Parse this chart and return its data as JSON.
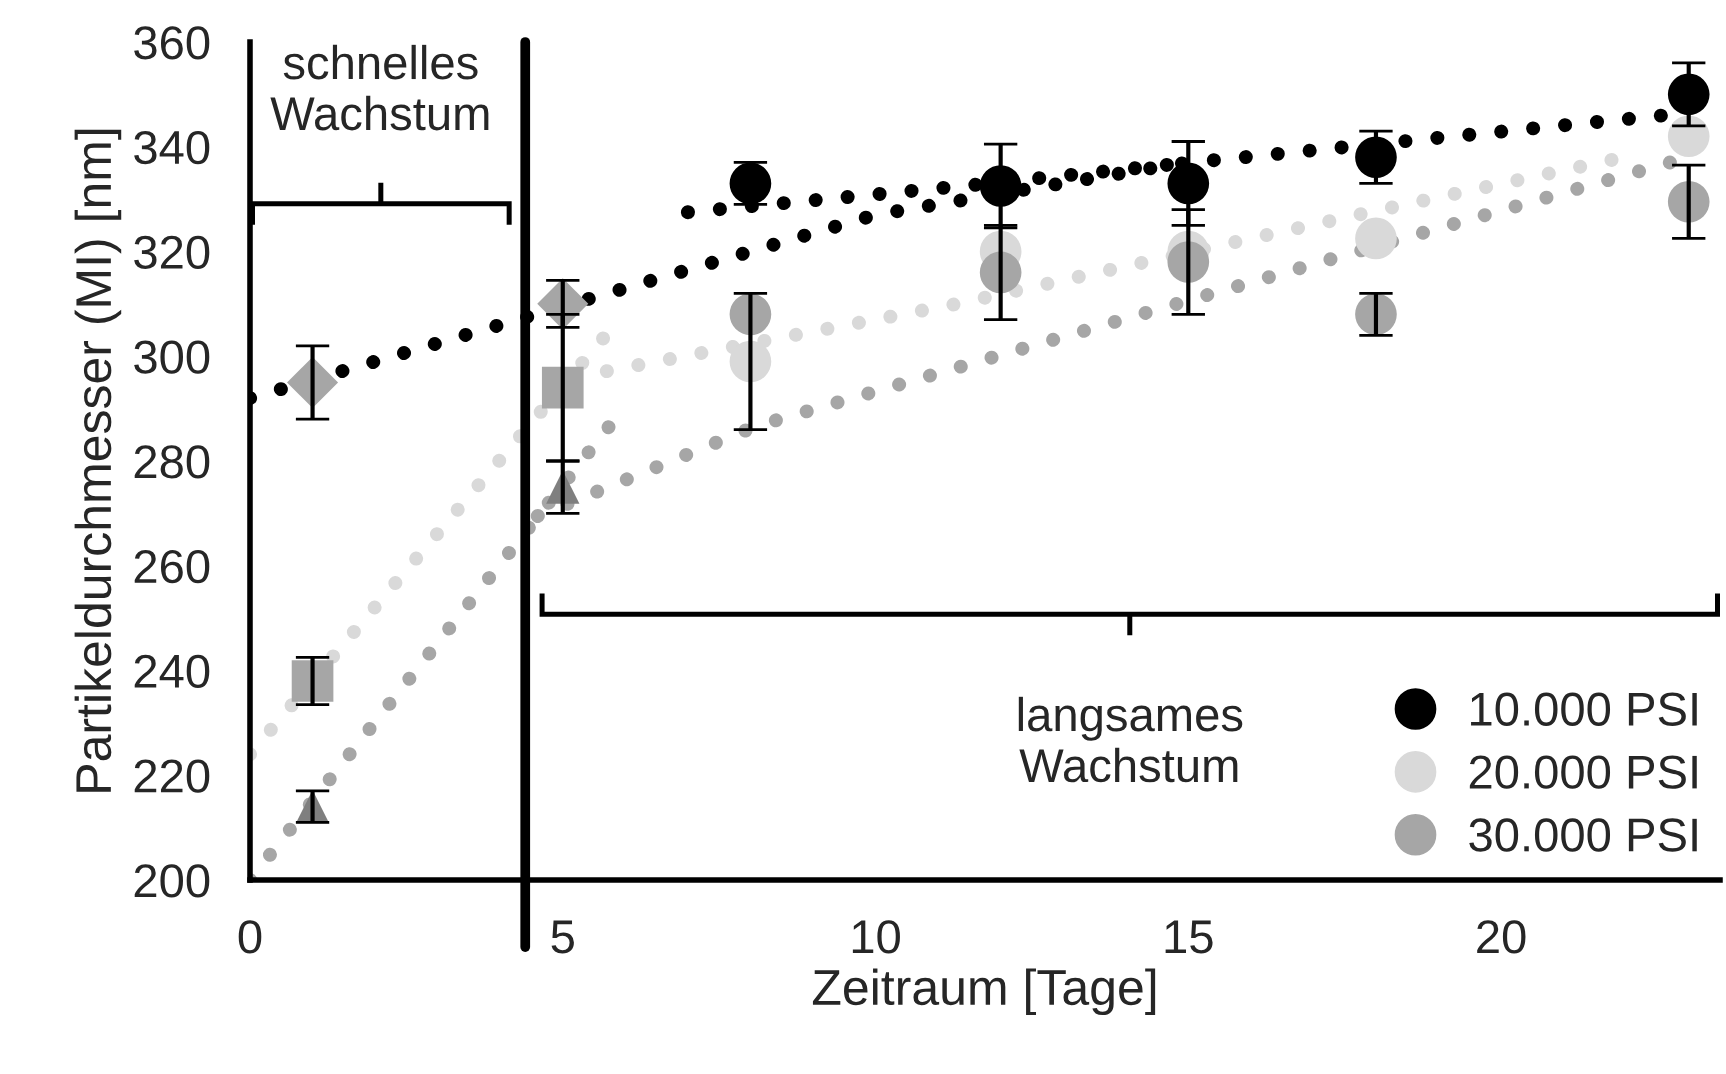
{
  "chart_data": {
    "type": "scatter",
    "xlabel": "Zeitraum [Tage]",
    "ylabel": "Partikeldurchmesser (MI) [nm]",
    "xlim": [
      0,
      23.5
    ],
    "xticks": [
      0,
      5,
      10,
      15,
      20
    ],
    "ylim": [
      200,
      360
    ],
    "yticks": [
      200,
      220,
      240,
      260,
      280,
      300,
      320,
      340,
      360
    ],
    "grid": false,
    "legend": "bottom right",
    "series": [
      {
        "color": "#a6a6a6",
        "marker": "diamond",
        "x": [
          1,
          5
        ],
        "values": [
          295,
          310
        ],
        "errors": [
          7,
          4.5
        ]
      },
      {
        "color": "#a6a6a6",
        "marker": "square",
        "x": [
          1,
          5
        ],
        "values": [
          238,
          294
        ],
        "errors": [
          4.5,
          14
        ]
      },
      {
        "color": "#7f7f7f",
        "marker": "triangle",
        "x": [
          1,
          5
        ],
        "values": [
          214,
          275
        ],
        "errors": [
          3,
          5
        ]
      },
      {
        "type": "line",
        "color": "#000000",
        "line_style": "dotted",
        "x": [
          0,
          4,
          7,
          10,
          14.8,
          22.6
        ],
        "values": [
          292,
          306,
          316.5,
          327,
          336.7,
          346
        ]
      },
      {
        "type": "line",
        "color": "#000000",
        "line_style": "dotted",
        "x": [
          7,
          11.4,
          14.8
        ],
        "values": [
          327.5,
          332.5,
          336.7
        ]
      },
      {
        "type": "line",
        "color": "#d9d9d9",
        "line_style": "dotted",
        "x": [
          0,
          5.9
        ],
        "values": [
          224,
          307
        ]
      },
      {
        "type": "line",
        "color": "#d9d9d9",
        "line_style": "dotted",
        "x": [
          5.2,
          11.3,
          17.9,
          22.2
        ],
        "values": [
          296,
          310,
          327.5,
          338.6
        ]
      },
      {
        "type": "line",
        "color": "#a6a6a6",
        "line_style": "dotted",
        "x": [
          0,
          5.9
        ],
        "values": [
          200,
          289
        ]
      },
      {
        "type": "line",
        "color": "#a6a6a6",
        "line_style": "dotted",
        "x": [
          4.6,
          8.1,
          11.5,
          17.7,
          22.7
        ],
        "values": [
          269.5,
          286.7,
          298.5,
          320,
          337
        ]
      },
      {
        "name": "10.000 PSI",
        "color": "#000000",
        "marker": "circle",
        "x": [
          8,
          12,
          15,
          18,
          23
        ],
        "values": [
          333,
          332.5,
          333,
          338,
          350
        ],
        "errors": [
          4,
          8,
          8,
          5,
          6
        ]
      },
      {
        "name": "20.000 PSI",
        "color": "#d9d9d9",
        "marker": "circle",
        "x": [
          8,
          12,
          15,
          18,
          23
        ],
        "values": [
          299,
          320,
          320,
          322.5,
          342
        ],
        "errors": [
          13,
          null,
          null,
          null,
          null
        ]
      },
      {
        "name": "30.000 PSI",
        "color": "#a6a6a6",
        "marker": "circle",
        "x": [
          8,
          12,
          15,
          18,
          23
        ],
        "values": [
          308,
          316,
          318,
          308,
          329.5
        ],
        "errors": [
          null,
          9,
          10,
          4,
          7
        ]
      }
    ],
    "ref_lines": [
      {
        "axis": "x",
        "value": 4.4,
        "color": "#000000",
        "line_style": "solid"
      }
    ],
    "annotations": [
      "schnelles\nWachstum",
      "langsames\nWachstum"
    ]
  }
}
